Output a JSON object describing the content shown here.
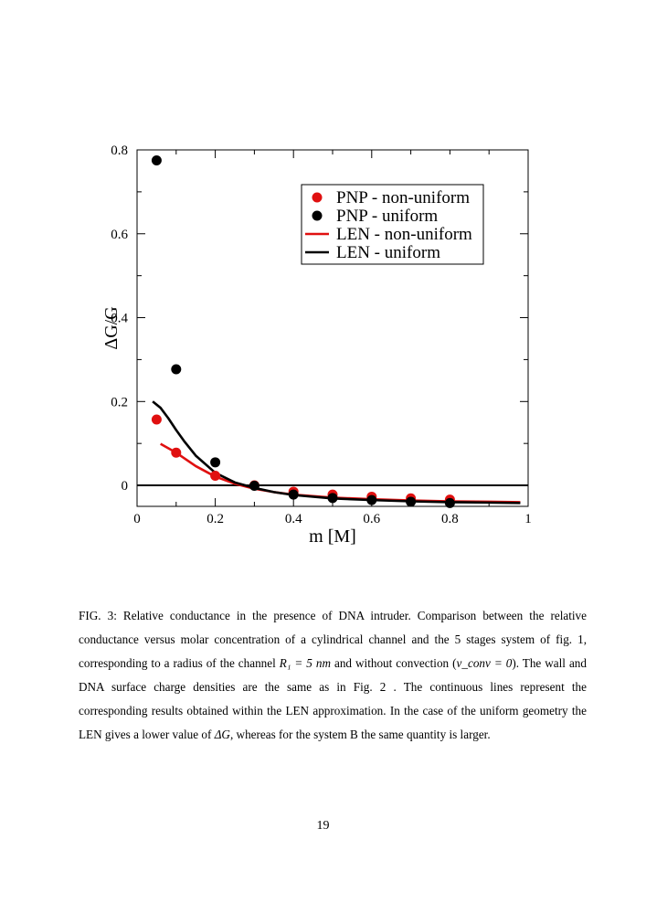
{
  "chart_data": {
    "type": "scatter",
    "xlabel": "m [M]",
    "ylabel": "ΔG/G",
    "xlim": [
      0,
      1
    ],
    "ylim": [
      -0.05,
      0.8
    ],
    "x_ticks": [
      0,
      0.2,
      0.4,
      0.6,
      0.8,
      1
    ],
    "x_tick_labels": [
      "0",
      "0.2",
      "0.4",
      "0.6",
      "0.8",
      "1"
    ],
    "y_ticks": [
      0,
      0.2,
      0.4,
      0.6,
      0.8
    ],
    "y_tick_labels": [
      "0",
      "0.2",
      "0.4",
      "0.6",
      "0.8"
    ],
    "grid": false,
    "reference_line": 0,
    "legend_position": "top-right",
    "series": [
      {
        "name": "PNP - non-uniform",
        "kind": "points",
        "color": "#e01010",
        "x": [
          0.05,
          0.1,
          0.2,
          0.3,
          0.4,
          0.5,
          0.6,
          0.7,
          0.8
        ],
        "y": [
          0.157,
          0.078,
          0.023,
          0.0,
          -0.015,
          -0.022,
          -0.027,
          -0.031,
          -0.034
        ]
      },
      {
        "name": "PNP - uniform",
        "kind": "points",
        "color": "#000000",
        "x": [
          0.05,
          0.1,
          0.2,
          0.3,
          0.4,
          0.5,
          0.6,
          0.7,
          0.8
        ],
        "y": [
          0.775,
          0.277,
          0.055,
          -0.001,
          -0.022,
          -0.03,
          -0.035,
          -0.039,
          -0.042
        ]
      },
      {
        "name": "LEN - non-uniform",
        "kind": "line",
        "color": "#e01010",
        "x": [
          0.06,
          0.1,
          0.15,
          0.2,
          0.25,
          0.3,
          0.35,
          0.4,
          0.5,
          0.6,
          0.7,
          0.8,
          0.9,
          0.98
        ],
        "y": [
          0.099,
          0.078,
          0.046,
          0.021,
          0.004,
          -0.008,
          -0.016,
          -0.022,
          -0.029,
          -0.033,
          -0.036,
          -0.038,
          -0.039,
          -0.04
        ]
      },
      {
        "name": "LEN - uniform",
        "kind": "line",
        "color": "#000000",
        "x": [
          0.04,
          0.06,
          0.08,
          0.1,
          0.12,
          0.15,
          0.2,
          0.25,
          0.3,
          0.35,
          0.4,
          0.5,
          0.6,
          0.7,
          0.8,
          0.9,
          0.98
        ],
        "y": [
          0.2,
          0.185,
          0.16,
          0.132,
          0.106,
          0.071,
          0.03,
          0.007,
          -0.006,
          -0.016,
          -0.023,
          -0.031,
          -0.035,
          -0.038,
          -0.04,
          -0.041,
          -0.042
        ]
      }
    ]
  },
  "caption": {
    "label": "FIG. 3:",
    "part1": "Relative conductance in the presence of DNA intruder. Comparison between the relative conductance versus molar concentration of a cylindrical channel and the 5 stages system of fig. 1, corresponding to a radius of the channel ",
    "math_radius": "R₁ = 5 nm",
    "part2": " and without convection (",
    "math_conv": "v_conv = 0",
    "part3": "). The wall and DNA surface charge densities are the same as in Fig. 2 . The continuous lines represent the corresponding results obtained within the LEN approximation. In the case of the uniform geometry the LEN gives a lower value of ",
    "math_dg": "ΔG",
    "part4": ", whereas for the system B the same quantity is larger."
  },
  "page_number": "19"
}
